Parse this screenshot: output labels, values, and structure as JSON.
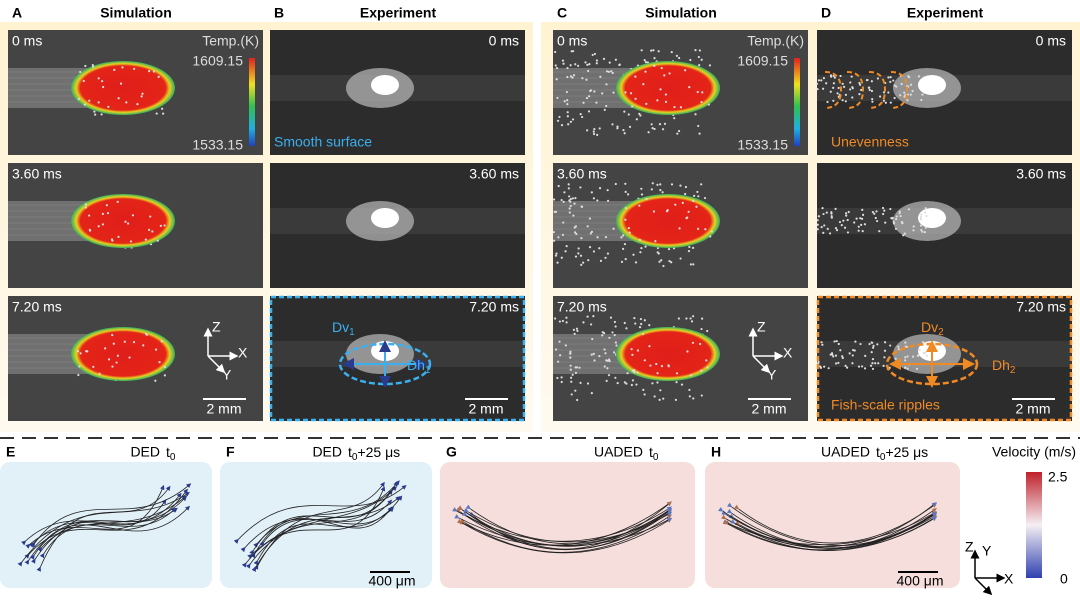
{
  "panels": [
    {
      "letter": "A",
      "title": "Simulation",
      "frames": [
        "0 ms",
        "3.60 ms",
        "7.20 ms"
      ],
      "legend_title": "Temp.(K)",
      "legend_max": "1609.15",
      "legend_min": "1533.15",
      "axes": [
        "Z",
        "X",
        "Y"
      ],
      "scale": "2 mm"
    },
    {
      "letter": "B",
      "title": "Experiment",
      "frames": [
        "0 ms",
        "3.60 ms",
        "7.20 ms"
      ],
      "annotation": "Smooth surface",
      "dv": {
        "base": "Dv",
        "sub": "1"
      },
      "dh": {
        "base": "Dh",
        "sub": "1"
      },
      "scale": "2 mm"
    },
    {
      "letter": "C",
      "title": "Simulation",
      "frames": [
        "0 ms",
        "3.60 ms",
        "7.20 ms"
      ],
      "legend_title": "Temp.(K)",
      "legend_max": "1609.15",
      "legend_min": "1533.15",
      "axes": [
        "Z",
        "X",
        "Y"
      ],
      "scale": "2 mm"
    },
    {
      "letter": "D",
      "title": "Experiment",
      "frames": [
        "0 ms",
        "3.60 ms",
        "7.20 ms"
      ],
      "annotation": "Unevenness",
      "dv": {
        "base": "Dv",
        "sub": "2"
      },
      "dh": {
        "base": "Dh",
        "sub": "2"
      },
      "annotation2": "Fish-scale ripples",
      "scale": "2 mm"
    }
  ],
  "bottom": [
    {
      "letter": "E",
      "method": "DED",
      "time": {
        "base": "t",
        "sub": "0"
      }
    },
    {
      "letter": "F",
      "method": "DED",
      "time": {
        "base": "t",
        "sub": "0",
        "rest": "+25 μs"
      },
      "scale": "400 μm"
    },
    {
      "letter": "G",
      "method": "UADED",
      "time": {
        "base": "t",
        "sub": "0"
      }
    },
    {
      "letter": "H",
      "method": "UADED",
      "time": {
        "base": "t",
        "sub": "0",
        "rest": "+25 μs"
      },
      "scale": "400 μm"
    }
  ],
  "colorbar": {
    "title": "Velocity (m/s)",
    "max": "2.5",
    "min": "0"
  },
  "axes": [
    "Z",
    "Y",
    "X"
  ]
}
